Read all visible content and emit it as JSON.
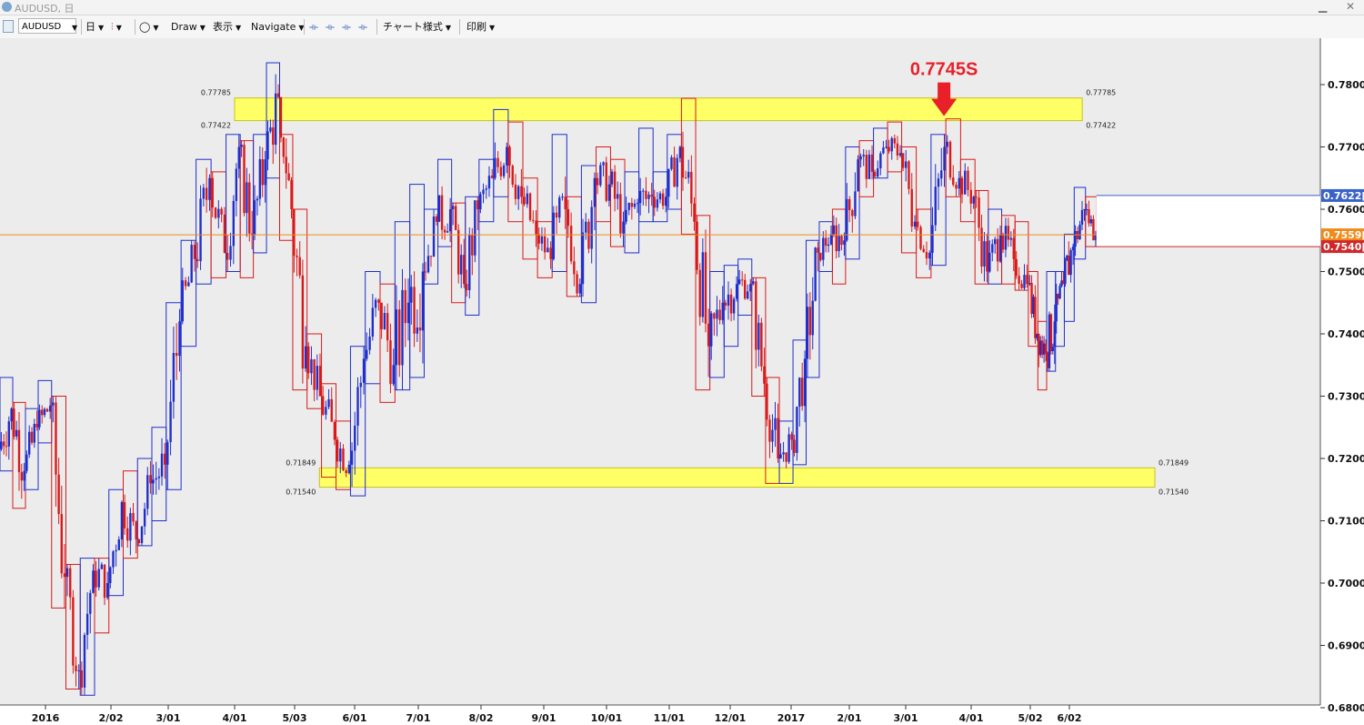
{
  "window": {
    "title": "AUDUSD, 日",
    "minimize": "▁",
    "close": "✕"
  },
  "toolbar": {
    "symbol": "AUDUSD",
    "period": "日",
    "draw": "Draw",
    "view": "表示",
    "navigate": "Navigate",
    "chart_style": "チャート様式",
    "print": "印刷"
  },
  "annotation": {
    "label": "0.7745S",
    "price": 0.7745,
    "date": "2017-03-20"
  },
  "colors": {
    "up": "#1f2fcc",
    "down": "#d91a1a",
    "zone": "#ffff66",
    "current": "#f08a1a",
    "annotation": "#e8202a"
  },
  "chart_data": {
    "type": "candlestick",
    "symbol": "AUDUSD",
    "timeframe": "日",
    "y_axis": {
      "min": 0.68,
      "max": 0.785,
      "ticks": [
        "0.7800[0]",
        "0.7700[0]",
        "0.7600[0]",
        "0.7500[0]",
        "0.7400[0]",
        "0.7300[0]",
        "0.7200[0]",
        "0.7100[0]",
        "0.7000[0]",
        "0.6900[0]",
        "0.6800[0]"
      ]
    },
    "x_axis": {
      "labels": [
        "2016",
        "2/02",
        "3/01",
        "4/01",
        "5/03",
        "6/01",
        "7/01",
        "8/02",
        "9/01",
        "10/01",
        "11/01",
        "12/01",
        "2017",
        "2/01",
        "3/01",
        "4/01",
        "5/02",
        "6/02"
      ],
      "start": "2015-12-07",
      "end": "2017-06-12"
    },
    "resistance_zone": {
      "upper": 0.77785,
      "lower": 0.77422,
      "upper_label": "0.77785",
      "lower_label": "0.77422",
      "start": "2016-04-01",
      "end": "2017-06-10"
    },
    "support_zone": {
      "upper": 0.71849,
      "lower": 0.7154,
      "upper_label": "0.71849",
      "lower_label": "0.71540",
      "start": "2016-05-15",
      "end": "2017-07-25"
    },
    "price_markers": [
      {
        "value": 0.7622,
        "label": "0.7622[",
        "color": "#3a63c8"
      },
      {
        "value": 0.7559,
        "label": "0.7559[",
        "color": "#f08a1a"
      },
      {
        "value": 0.754,
        "label": "0.7540[",
        "color": "#d0282a"
      }
    ],
    "weekly_boxes": [
      {
        "date": "2015-12-07",
        "open": 0.7215,
        "high": 0.733,
        "low": 0.718,
        "close": 0.728
      },
      {
        "date": "2015-12-14",
        "open": 0.728,
        "high": 0.729,
        "low": 0.712,
        "close": 0.718
      },
      {
        "date": "2015-12-21",
        "open": 0.718,
        "high": 0.728,
        "low": 0.715,
        "close": 0.725
      },
      {
        "date": "2015-12-28",
        "open": 0.725,
        "high": 0.7325,
        "low": 0.7225,
        "close": 0.7285
      },
      {
        "date": "2016-01-04",
        "open": 0.7285,
        "high": 0.73,
        "low": 0.696,
        "close": 0.701
      },
      {
        "date": "2016-01-11",
        "open": 0.701,
        "high": 0.703,
        "low": 0.683,
        "close": 0.686
      },
      {
        "date": "2016-01-18",
        "open": 0.686,
        "high": 0.704,
        "low": 0.682,
        "close": 0.702
      },
      {
        "date": "2016-01-25",
        "open": 0.702,
        "high": 0.704,
        "low": 0.692,
        "close": 0.7
      },
      {
        "date": "2016-02-01",
        "open": 0.7,
        "high": 0.715,
        "low": 0.698,
        "close": 0.713
      },
      {
        "date": "2016-02-08",
        "open": 0.713,
        "high": 0.718,
        "low": 0.704,
        "close": 0.707
      },
      {
        "date": "2016-02-15",
        "open": 0.707,
        "high": 0.72,
        "low": 0.706,
        "close": 0.716
      },
      {
        "date": "2016-02-22",
        "open": 0.716,
        "high": 0.725,
        "low": 0.71,
        "close": 0.719
      },
      {
        "date": "2016-02-29",
        "open": 0.719,
        "high": 0.745,
        "low": 0.715,
        "close": 0.742
      },
      {
        "date": "2016-03-07",
        "open": 0.742,
        "high": 0.755,
        "low": 0.738,
        "close": 0.752
      },
      {
        "date": "2016-03-14",
        "open": 0.752,
        "high": 0.768,
        "low": 0.748,
        "close": 0.765
      },
      {
        "date": "2016-03-21",
        "open": 0.765,
        "high": 0.766,
        "low": 0.749,
        "close": 0.753
      },
      {
        "date": "2016-03-28",
        "open": 0.753,
        "high": 0.772,
        "low": 0.75,
        "close": 0.77
      },
      {
        "date": "2016-04-04",
        "open": 0.77,
        "high": 0.771,
        "low": 0.749,
        "close": 0.756
      },
      {
        "date": "2016-04-11",
        "open": 0.756,
        "high": 0.772,
        "low": 0.753,
        "close": 0.768
      },
      {
        "date": "2016-04-18",
        "open": 0.768,
        "high": 0.7835,
        "low": 0.765,
        "close": 0.778
      },
      {
        "date": "2016-04-25",
        "open": 0.778,
        "high": 0.772,
        "low": 0.755,
        "close": 0.76
      },
      {
        "date": "2016-05-02",
        "open": 0.76,
        "high": 0.76,
        "low": 0.731,
        "close": 0.738
      },
      {
        "date": "2016-05-09",
        "open": 0.738,
        "high": 0.74,
        "low": 0.728,
        "close": 0.73
      },
      {
        "date": "2016-05-16",
        "open": 0.73,
        "high": 0.732,
        "low": 0.717,
        "close": 0.723
      },
      {
        "date": "2016-05-23",
        "open": 0.723,
        "high": 0.726,
        "low": 0.715,
        "close": 0.719
      },
      {
        "date": "2016-05-30",
        "open": 0.719,
        "high": 0.738,
        "low": 0.714,
        "close": 0.736
      },
      {
        "date": "2016-06-06",
        "open": 0.736,
        "high": 0.75,
        "low": 0.732,
        "close": 0.745
      },
      {
        "date": "2016-06-13",
        "open": 0.745,
        "high": 0.748,
        "low": 0.729,
        "close": 0.735
      },
      {
        "date": "2016-06-20",
        "open": 0.735,
        "high": 0.758,
        "low": 0.731,
        "close": 0.745
      },
      {
        "date": "2016-06-27",
        "open": 0.745,
        "high": 0.764,
        "low": 0.733,
        "close": 0.75
      },
      {
        "date": "2016-07-04",
        "open": 0.75,
        "high": 0.76,
        "low": 0.748,
        "close": 0.758
      },
      {
        "date": "2016-07-11",
        "open": 0.758,
        "high": 0.768,
        "low": 0.754,
        "close": 0.76
      },
      {
        "date": "2016-07-18",
        "open": 0.76,
        "high": 0.761,
        "low": 0.745,
        "close": 0.748
      },
      {
        "date": "2016-07-25",
        "open": 0.748,
        "high": 0.762,
        "low": 0.743,
        "close": 0.76
      },
      {
        "date": "2016-08-01",
        "open": 0.76,
        "high": 0.768,
        "low": 0.758,
        "close": 0.765
      },
      {
        "date": "2016-08-08",
        "open": 0.765,
        "high": 0.776,
        "low": 0.762,
        "close": 0.77
      },
      {
        "date": "2016-08-15",
        "open": 0.77,
        "high": 0.774,
        "low": 0.758,
        "close": 0.762
      },
      {
        "date": "2016-08-22",
        "open": 0.762,
        "high": 0.765,
        "low": 0.752,
        "close": 0.756
      },
      {
        "date": "2016-08-29",
        "open": 0.756,
        "high": 0.758,
        "low": 0.749,
        "close": 0.752
      },
      {
        "date": "2016-09-05",
        "open": 0.752,
        "high": 0.772,
        "low": 0.75,
        "close": 0.76
      },
      {
        "date": "2016-09-12",
        "open": 0.76,
        "high": 0.762,
        "low": 0.746,
        "close": 0.748
      },
      {
        "date": "2016-09-19",
        "open": 0.748,
        "high": 0.767,
        "low": 0.745,
        "close": 0.765
      },
      {
        "date": "2016-09-26",
        "open": 0.765,
        "high": 0.77,
        "low": 0.758,
        "close": 0.764
      },
      {
        "date": "2016-10-03",
        "open": 0.764,
        "high": 0.768,
        "low": 0.754,
        "close": 0.758
      },
      {
        "date": "2016-10-10",
        "open": 0.758,
        "high": 0.766,
        "low": 0.753,
        "close": 0.761
      },
      {
        "date": "2016-10-17",
        "open": 0.761,
        "high": 0.773,
        "low": 0.758,
        "close": 0.762
      },
      {
        "date": "2016-10-24",
        "open": 0.762,
        "high": 0.766,
        "low": 0.758,
        "close": 0.762
      },
      {
        "date": "2016-10-31",
        "open": 0.762,
        "high": 0.772,
        "low": 0.76,
        "close": 0.77
      },
      {
        "date": "2016-11-07",
        "open": 0.77,
        "high": 0.7778,
        "low": 0.756,
        "close": 0.758
      },
      {
        "date": "2016-11-14",
        "open": 0.758,
        "high": 0.759,
        "low": 0.731,
        "close": 0.738
      },
      {
        "date": "2016-11-21",
        "open": 0.738,
        "high": 0.75,
        "low": 0.733,
        "close": 0.745
      },
      {
        "date": "2016-11-28",
        "open": 0.745,
        "high": 0.751,
        "low": 0.738,
        "close": 0.748
      },
      {
        "date": "2016-12-05",
        "open": 0.748,
        "high": 0.752,
        "low": 0.743,
        "close": 0.748
      },
      {
        "date": "2016-12-12",
        "open": 0.748,
        "high": 0.749,
        "low": 0.73,
        "close": 0.732
      },
      {
        "date": "2016-12-19",
        "open": 0.732,
        "high": 0.733,
        "low": 0.716,
        "close": 0.72
      },
      {
        "date": "2016-12-26",
        "open": 0.72,
        "high": 0.726,
        "low": 0.716,
        "close": 0.723
      },
      {
        "date": "2017-01-02",
        "open": 0.723,
        "high": 0.739,
        "low": 0.719,
        "close": 0.736
      },
      {
        "date": "2017-01-09",
        "open": 0.736,
        "high": 0.755,
        "low": 0.733,
        "close": 0.753
      },
      {
        "date": "2017-01-16",
        "open": 0.753,
        "high": 0.758,
        "low": 0.75,
        "close": 0.756
      },
      {
        "date": "2017-01-23",
        "open": 0.756,
        "high": 0.76,
        "low": 0.748,
        "close": 0.755
      },
      {
        "date": "2017-01-30",
        "open": 0.755,
        "high": 0.77,
        "low": 0.752,
        "close": 0.768
      },
      {
        "date": "2017-02-06",
        "open": 0.768,
        "high": 0.771,
        "low": 0.762,
        "close": 0.766
      },
      {
        "date": "2017-02-13",
        "open": 0.766,
        "high": 0.773,
        "low": 0.765,
        "close": 0.77
      },
      {
        "date": "2017-02-20",
        "open": 0.77,
        "high": 0.774,
        "low": 0.766,
        "close": 0.769
      },
      {
        "date": "2017-02-27",
        "open": 0.769,
        "high": 0.77,
        "low": 0.753,
        "close": 0.758
      },
      {
        "date": "2017-03-06",
        "open": 0.758,
        "high": 0.76,
        "low": 0.749,
        "close": 0.753
      },
      {
        "date": "2017-03-13",
        "open": 0.753,
        "high": 0.772,
        "low": 0.751,
        "close": 0.77
      },
      {
        "date": "2017-03-20",
        "open": 0.77,
        "high": 0.7745,
        "low": 0.762,
        "close": 0.765
      },
      {
        "date": "2017-03-27",
        "open": 0.765,
        "high": 0.768,
        "low": 0.758,
        "close": 0.762
      },
      {
        "date": "2017-04-03",
        "open": 0.762,
        "high": 0.763,
        "low": 0.748,
        "close": 0.75
      },
      {
        "date": "2017-04-10",
        "open": 0.75,
        "high": 0.76,
        "low": 0.748,
        "close": 0.756
      },
      {
        "date": "2017-04-17",
        "open": 0.756,
        "high": 0.759,
        "low": 0.748,
        "close": 0.752
      },
      {
        "date": "2017-04-24",
        "open": 0.752,
        "high": 0.758,
        "low": 0.747,
        "close": 0.748
      },
      {
        "date": "2017-05-01",
        "open": 0.748,
        "high": 0.75,
        "low": 0.738,
        "close": 0.74
      },
      {
        "date": "2017-05-08",
        "open": 0.74,
        "high": 0.742,
        "low": 0.731,
        "close": 0.737
      },
      {
        "date": "2017-05-15",
        "open": 0.737,
        "high": 0.75,
        "low": 0.734,
        "close": 0.742
      },
      {
        "date": "2017-05-22",
        "open": 0.742,
        "high": 0.75,
        "low": 0.738,
        "close": 0.748
      },
      {
        "date": "2017-05-29",
        "open": 0.748,
        "high": 0.756,
        "low": 0.742,
        "close": 0.754
      },
      {
        "date": "2017-06-05",
        "open": 0.754,
        "high": 0.7635,
        "low": 0.752,
        "close": 0.76
      },
      {
        "date": "2017-06-12",
        "open": 0.76,
        "high": 0.762,
        "low": 0.754,
        "close": 0.7559
      }
    ]
  }
}
